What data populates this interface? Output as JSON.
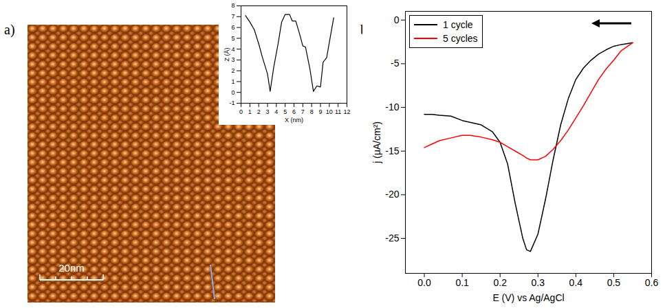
{
  "chart_data": [
    {
      "type": "image",
      "panel": "a)",
      "scale_bar": "20nm",
      "color": "#c8661e"
    },
    {
      "type": "line",
      "x_label": "X (nm)",
      "y_label": "Z (Å)",
      "color": "#000000",
      "x": [
        0.5,
        1.0,
        1.5,
        2.0,
        2.4,
        3.0,
        3.3,
        3.7,
        4.2,
        4.6,
        5.0,
        5.5,
        5.8,
        6.2,
        6.6,
        7.0,
        7.3,
        7.8,
        8.2,
        8.6,
        9.0,
        9.3,
        9.7,
        10.0,
        10.5
      ],
      "values": [
        7.1,
        6.5,
        5.8,
        4.5,
        3.3,
        1.7,
        0.1,
        2.3,
        4.5,
        6.5,
        7.2,
        7.2,
        6.6,
        6.6,
        5.5,
        4.3,
        4.2,
        2.2,
        0.1,
        0.6,
        0.5,
        2.8,
        3.2,
        4.6,
        6.9
      ],
      "xlim": [
        0,
        12
      ],
      "xticks": [
        0,
        1,
        2,
        3,
        4,
        5,
        6,
        7,
        8,
        9,
        10,
        11,
        12
      ],
      "ylim": [
        -1,
        8
      ],
      "yticks": [
        -1,
        0,
        1,
        2,
        3,
        4,
        5,
        6,
        7,
        8
      ]
    },
    {
      "type": "line",
      "panel": "b)",
      "x_label": "E (V) vs Ag/AgCl",
      "y_label": "j (μA/cm²)",
      "x": [
        0.55,
        0.52,
        0.5,
        0.48,
        0.46,
        0.44,
        0.42,
        0.4,
        0.38,
        0.36,
        0.34,
        0.32,
        0.3,
        0.28,
        0.27,
        0.26,
        0.24,
        0.22,
        0.2,
        0.18,
        0.15,
        0.12,
        0.1,
        0.07,
        0.04,
        0.02,
        0.0
      ],
      "series": [
        {
          "name": "1 cycle",
          "color": "#000000",
          "values": [
            -2.6,
            -2.8,
            -3.0,
            -3.4,
            -3.9,
            -4.6,
            -5.5,
            -6.8,
            -9.0,
            -12.0,
            -16.0,
            -20.5,
            -24.5,
            -26.5,
            -26.3,
            -25.0,
            -21.0,
            -16.5,
            -14.0,
            -12.8,
            -12.0,
            -11.7,
            -11.5,
            -11.0,
            -10.9,
            -10.8,
            -10.8
          ]
        },
        {
          "name": "5 cycles",
          "color": "#ff0000",
          "values": [
            -2.6,
            -3.5,
            -4.6,
            -5.6,
            -6.8,
            -8.3,
            -9.8,
            -11.2,
            -12.6,
            -13.8,
            -14.8,
            -15.6,
            -16.0,
            -16.0,
            -15.8,
            -15.5,
            -15.0,
            -14.5,
            -14.0,
            -13.7,
            -13.4,
            -13.2,
            -13.2,
            -13.5,
            -13.8,
            -14.2,
            -14.6
          ]
        }
      ],
      "xlim": [
        -0.05,
        0.6
      ],
      "xticks": [
        {
          "value": 0,
          "label": "0.0"
        },
        {
          "value": 0.1,
          "label": "0.1"
        },
        {
          "value": 0.2,
          "label": "0.2"
        },
        {
          "value": 0.3,
          "label": "0.3"
        },
        {
          "value": 0.4,
          "label": "0.4"
        },
        {
          "value": 0.5,
          "label": "0.5"
        },
        {
          "value": 0.6,
          "label": "0.6"
        }
      ],
      "ylim": [
        -29,
        1
      ],
      "yticks": [
        -25,
        -20,
        -15,
        -10,
        -5,
        0
      ],
      "legend": "top-left"
    }
  ]
}
